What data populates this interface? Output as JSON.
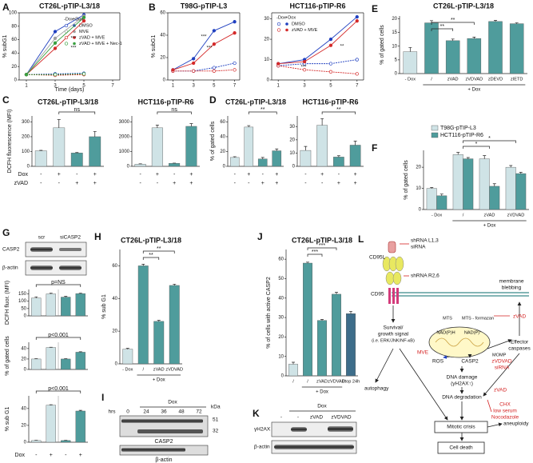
{
  "panel_labels": [
    "A",
    "B",
    "C",
    "D",
    "E",
    "F",
    "G",
    "H",
    "I",
    "J",
    "K",
    "L"
  ],
  "chart_data": [
    {
      "type": "line",
      "title": "CT26L-pTIP-L3/18",
      "ylabel": "% subG1",
      "xlabel": "Time (days)",
      "x": [
        1,
        3,
        5,
        7
      ],
      "xlim": [
        0.5,
        7.5
      ],
      "xticks": [
        1,
        3,
        5,
        7
      ],
      "ylim": [
        0,
        100
      ],
      "yticks": [
        0,
        20,
        40,
        60,
        80,
        100
      ],
      "legend_headers": [
        "-Dox",
        "+Dox"
      ],
      "series": [
        {
          "name": "DMSO",
          "color": "#2040c0",
          "values": [
            8,
            72,
            97,
            null
          ],
          "values_no_dox": [
            8,
            9,
            10,
            null
          ]
        },
        {
          "name": "MVE",
          "color": "#a0a0a0",
          "values": [
            8,
            62,
            95,
            null
          ],
          "values_no_dox": [
            8,
            8,
            9,
            null
          ]
        },
        {
          "name": "zVAD + MVE",
          "color": "#d42a2a",
          "values": [
            8,
            47,
            88,
            null
          ],
          "values_no_dox": [
            8,
            7,
            8,
            null
          ]
        },
        {
          "name": "zVAD + MVE + Nec-1",
          "color": "#3aa040",
          "values": [
            8,
            55,
            93,
            null
          ],
          "values_no_dox": [
            8,
            8,
            9,
            null
          ]
        }
      ],
      "annotations": [
        "***",
        "***"
      ]
    },
    {
      "type": "line",
      "title": "T98G-pTIP-L3",
      "ylabel": "% subG1",
      "x": [
        1,
        3,
        5,
        7
      ],
      "xlim": [
        0.5,
        7.5
      ],
      "xticks": [
        1,
        3,
        5,
        7
      ],
      "ylim": [
        0,
        60
      ],
      "yticks": [
        0,
        20,
        40,
        60
      ],
      "series": [
        {
          "color": "#2040c0",
          "values": [
            9,
            19,
            44,
            52
          ],
          "values_no_dox": [
            8,
            8,
            11,
            15
          ]
        },
        {
          "color": "#d42a2a",
          "values": [
            9,
            15,
            32,
            42
          ],
          "values_no_dox": [
            8,
            8,
            8,
            9
          ]
        }
      ],
      "annotations": [
        "***",
        "***"
      ]
    },
    {
      "type": "line",
      "title": "HCT116-pTIP-R6",
      "x": [
        1,
        3,
        5,
        7
      ],
      "xlim": [
        0.5,
        7.5
      ],
      "xticks": [
        1,
        3,
        5,
        7
      ],
      "ylim": [
        0,
        33
      ],
      "yticks": [
        0,
        10,
        20,
        30
      ],
      "legend_headers": [
        "-Dox",
        "+Dox"
      ],
      "series": [
        {
          "name": "DMSO",
          "color": "#2040c0",
          "values": [
            8,
            10,
            20,
            31
          ],
          "values_no_dox": [
            7,
            8,
            8,
            10
          ]
        },
        {
          "name": "zVAD + MVE",
          "color": "#d42a2a",
          "values": [
            8,
            9,
            17,
            29
          ],
          "values_no_dox": [
            7,
            5,
            4,
            3
          ]
        }
      ],
      "annotations": [
        "***",
        "**"
      ]
    },
    {
      "type": "bar",
      "title": "CT26L-pTIP-L3/18",
      "ylabel": "% of gated cells",
      "categories": [
        "- Dox",
        "/",
        "zVAD",
        "zVDVAD",
        "zDEVD",
        "zIETD"
      ],
      "values": [
        8,
        18.5,
        12,
        12.8,
        19,
        18.2
      ],
      "errors": [
        1.5,
        0.8,
        0.6,
        0.5,
        0.4,
        0.3
      ],
      "colors": [
        "#cfe3e6",
        "#4f9c9c",
        "#4f9c9c",
        "#4f9c9c",
        "#4f9c9c",
        "#4f9c9c"
      ],
      "ylim": [
        0,
        21
      ],
      "yticks": [
        0,
        5,
        10,
        15,
        20
      ],
      "group_label": "+ Dox",
      "significance": [
        "**",
        "**"
      ]
    },
    {
      "type": "bar",
      "title": "CT26L-pTIP-L3/18",
      "ylabel": "DCFH fluorescence (MFI)",
      "values": [
        105,
        260,
        90,
        200
      ],
      "errors": [
        3,
        55,
        3,
        35
      ],
      "colors": [
        "#cfe3e6",
        "#cfe3e6",
        "#4f9c9c",
        "#4f9c9c"
      ],
      "ylim": [
        0,
        340
      ],
      "yticks": [
        0,
        100,
        200,
        300
      ],
      "row_labels": [
        {
          "name": "Dox",
          "marks": [
            "-",
            "+",
            "-",
            "+"
          ]
        },
        {
          "name": "zVAD",
          "marks": [
            "-",
            "-",
            "+",
            "+"
          ]
        }
      ],
      "significance": [
        "ns"
      ]
    },
    {
      "type": "bar",
      "title": "HCT116-pTIP-R6",
      "values": [
        150,
        2600,
        200,
        2700
      ],
      "errors": [
        20,
        180,
        20,
        180
      ],
      "colors": [
        "#cfe3e6",
        "#cfe3e6",
        "#4f9c9c",
        "#4f9c9c"
      ],
      "ylim": [
        0,
        3400
      ],
      "yticks": [
        0,
        1000,
        2000,
        3000
      ],
      "row_labels": [
        {
          "marks": [
            "-",
            "+",
            "-",
            "+"
          ]
        },
        {
          "marks": [
            "-",
            "-",
            "+",
            "+"
          ]
        }
      ],
      "significance": [
        "ns"
      ]
    },
    {
      "type": "bar",
      "title": "CT26L-pTIP-L3/18",
      "ylabel": "% of gated cells",
      "values": [
        12,
        53,
        10,
        21
      ],
      "errors": [
        1,
        2,
        2,
        2.5
      ],
      "colors": [
        "#cfe3e6",
        "#cfe3e6",
        "#4f9c9c",
        "#4f9c9c"
      ],
      "ylim": [
        0,
        68
      ],
      "yticks": [
        0,
        20,
        40,
        60
      ],
      "row_labels": [
        {
          "marks": [
            "-",
            "+",
            "-",
            "+"
          ]
        },
        {
          "marks": [
            "-",
            "-",
            "+",
            "+"
          ]
        }
      ],
      "significance": [
        "**"
      ]
    },
    {
      "type": "bar",
      "title": "HCT116-pTIP-R6",
      "values": [
        12,
        31,
        7,
        16
      ],
      "errors": [
        3,
        5,
        1,
        3
      ],
      "colors": [
        "#cfe3e6",
        "#cfe3e6",
        "#4f9c9c",
        "#4f9c9c"
      ],
      "ylim": [
        0,
        38
      ],
      "yticks": [
        0,
        10,
        20,
        30
      ],
      "row_labels": [
        {
          "marks": [
            "-",
            "+",
            "-",
            "+"
          ]
        },
        {
          "marks": [
            "-",
            "-",
            "+",
            "+"
          ]
        }
      ],
      "significance": [
        "**"
      ]
    },
    {
      "type": "grouped_bar",
      "ylabel": "% of gated cells",
      "categories": [
        "- Dox",
        "/",
        "zVAD",
        "zVDVAD"
      ],
      "ylim": [
        0,
        28
      ],
      "yticks": [
        0,
        10,
        20
      ],
      "group_label": "+ Dox",
      "significance": [
        "*",
        "*"
      ],
      "series": [
        {
          "name": "T98G-pTIP-L3",
          "color": "#cfe3e6",
          "values": [
            10,
            26,
            24,
            20
          ],
          "errors": [
            0.4,
            1,
            1.5,
            0.8
          ]
        },
        {
          "name": "HCT116-pTIP-R6",
          "color": "#4f9c9c",
          "values": [
            6.5,
            24,
            11,
            17
          ],
          "errors": [
            0.8,
            0.6,
            1.2,
            0.6
          ]
        }
      ]
    },
    {
      "type": "bar",
      "ylabel": "DCFH fluor. (MFI)",
      "values": [
        122,
        150,
        128,
        152
      ],
      "errors": [
        8,
        5,
        5,
        3
      ],
      "colors": [
        "#cfe3e6",
        "#cfe3e6",
        "#4f9c9c",
        "#4f9c9c"
      ],
      "ylim": [
        0,
        180
      ],
      "yticks": [
        0,
        50,
        100,
        150
      ],
      "significance": [
        "p=NS"
      ]
    },
    {
      "type": "bar",
      "ylabel": "% of gated cells",
      "values": [
        20,
        42,
        20,
        33
      ],
      "errors": [
        0.5,
        0.5,
        0.5,
        0.8
      ],
      "colors": [
        "#cfe3e6",
        "#cfe3e6",
        "#4f9c9c",
        "#4f9c9c"
      ],
      "ylim": [
        0,
        52
      ],
      "yticks": [
        0,
        20,
        40
      ],
      "significance": [
        "p<0.001"
      ]
    },
    {
      "type": "bar",
      "ylabel": "% sub G1",
      "values": [
        2,
        44,
        2,
        37
      ],
      "errors": [
        0.3,
        0.5,
        0.3,
        0.8
      ],
      "colors": [
        "#cfe3e6",
        "#cfe3e6",
        "#4f9c9c",
        "#4f9c9c"
      ],
      "ylim": [
        0,
        55
      ],
      "yticks": [
        0,
        20,
        40
      ],
      "significance": [
        "p<0.001"
      ],
      "row_labels": [
        {
          "name": "Dox",
          "marks": [
            "-",
            "+",
            "-",
            "+"
          ]
        }
      ]
    },
    {
      "type": "bar",
      "title": "CT26L-pTIP-L3/18",
      "ylabel": "% sub G1",
      "categories": [
        "- Dox",
        "/",
        "zVAD",
        "zVDVAD"
      ],
      "values": [
        9,
        60,
        26,
        48
      ],
      "errors": [
        0.5,
        1,
        0.6,
        0.8
      ],
      "colors": [
        "#cfe3e6",
        "#4f9c9c",
        "#4f9c9c",
        "#4f9c9c"
      ],
      "ylim": [
        0,
        70
      ],
      "yticks": [
        0,
        20,
        40,
        60
      ],
      "group_label": "+ Dox",
      "significance": [
        "**",
        "**"
      ]
    },
    {
      "type": "bar",
      "title": "CT26L-pTIP-L3/18",
      "ylabel": "% of cells with active CASP2",
      "categories": [
        "/",
        "/",
        "zVAD",
        "zVDVAD",
        "Etop 24h"
      ],
      "values": [
        6,
        58,
        28.5,
        42,
        32
      ],
      "errors": [
        1,
        0.5,
        0.5,
        1,
        1.2
      ],
      "colors": [
        "#cfe3e6",
        "#4f9c9c",
        "#4f9c9c",
        "#4f9c9c",
        "#3d6d8a"
      ],
      "ylim": [
        0,
        65
      ],
      "yticks": [
        0,
        10,
        20,
        30,
        40,
        50,
        60
      ],
      "group_label": "+ Dox",
      "significance": [
        "***",
        "***"
      ]
    }
  ],
  "blots": {
    "G": {
      "lanes": [
        "scr",
        "siCASP2"
      ],
      "rows": [
        "CASP2",
        "β-actin"
      ]
    },
    "I": {
      "unit": "hrs",
      "lanes": [
        "0",
        "24",
        "36",
        "48",
        "72"
      ],
      "treatment": "Dox",
      "size_unit": "kDa",
      "sizes": [
        "51",
        "32"
      ],
      "rows": [
        "CASP2",
        "β-actin"
      ]
    },
    "K": {
      "treatment": "Dox",
      "lanes": [
        "-",
        "-",
        "zVAD",
        "zVDVAD"
      ],
      "rows": [
        "γH2AX",
        "β-actin"
      ]
    }
  },
  "diagram": {
    "labels": [
      "CD95L",
      "shRNA L1,3",
      "siRNA",
      "shRNA R2,6",
      "CD95",
      "membrane",
      "blebbing",
      "MTS",
      "MTS - formazan",
      "NAD(P)H",
      "NAD(P)⁺",
      "MOMP",
      "Survival/",
      "growth signal",
      "(i.e. ERK/JNK/NF-κB)",
      "MVE",
      "zVAD",
      "Effector",
      "caspases",
      "ROS",
      "CASP2",
      "zVDVAD",
      "siRNA",
      "DNA damage",
      "(γH2AX↑)",
      "zVAD",
      "autophagy",
      "DNA degradation",
      "CHX",
      "low serum",
      "Nocodazole",
      "Mitotic crisis",
      "aneuploidy",
      "Cell death"
    ]
  }
}
